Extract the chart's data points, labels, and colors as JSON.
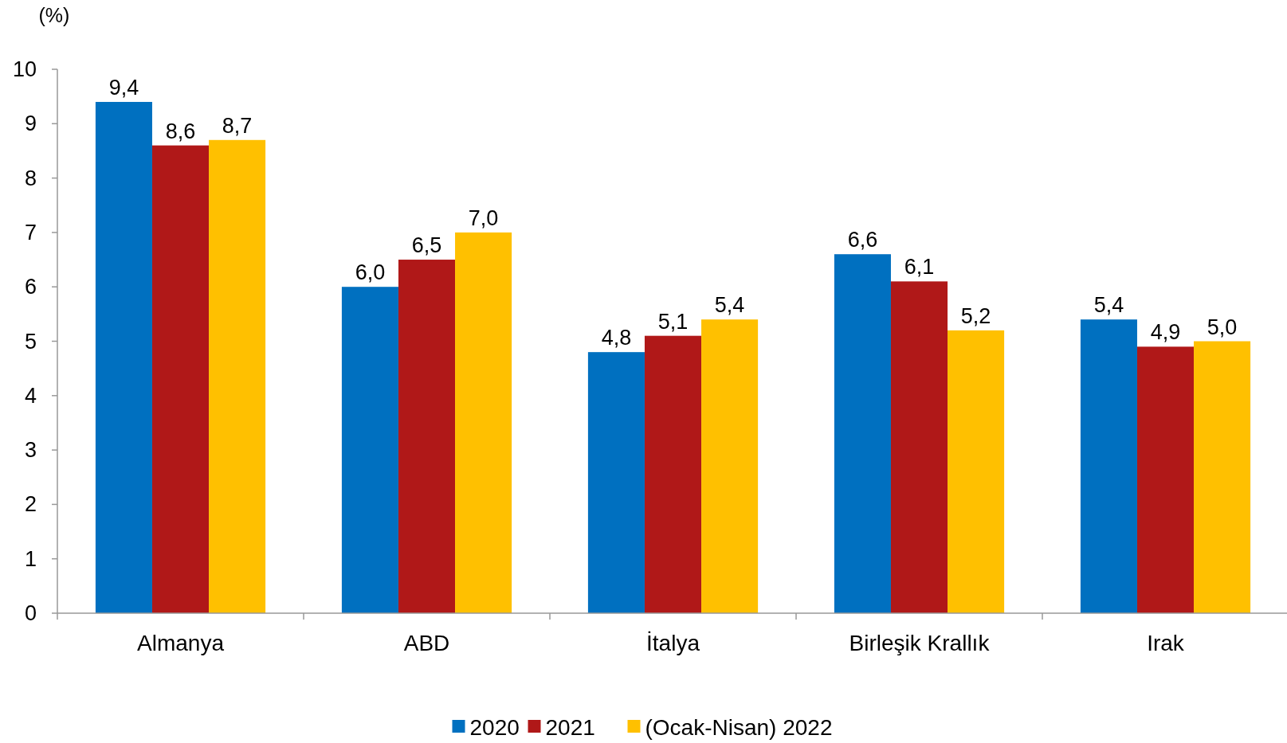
{
  "chart_data": {
    "type": "bar",
    "ylabel": "(%)",
    "categories": [
      "Almanya",
      "ABD",
      "İtalya",
      "Birleşik Krallık",
      "Irak"
    ],
    "series": [
      {
        "name": "2020",
        "color": "#0070c0",
        "values": [
          9.4,
          6.0,
          4.8,
          6.6,
          5.4
        ],
        "value_labels": [
          "9,4",
          "6,0",
          "4,8",
          "6,6",
          "5,4"
        ]
      },
      {
        "name": "2021",
        "color": "#b01818",
        "values": [
          8.6,
          6.5,
          5.1,
          6.1,
          4.9
        ],
        "value_labels": [
          "8,6",
          "6,5",
          "5,1",
          "6,1",
          "4,9"
        ]
      },
      {
        "name": "(Ocak-Nisan) 2022",
        "color": "#ffc000",
        "values": [
          8.7,
          7.0,
          5.4,
          5.2,
          5.0
        ],
        "value_labels": [
          "8,7",
          "7,0",
          "5,4",
          "5,2",
          "5,0"
        ]
      }
    ],
    "ylim": [
      0,
      10
    ],
    "yticks": [
      0,
      1,
      2,
      3,
      4,
      5,
      6,
      7,
      8,
      9,
      10
    ],
    "grid": false,
    "legend": "bottom"
  }
}
